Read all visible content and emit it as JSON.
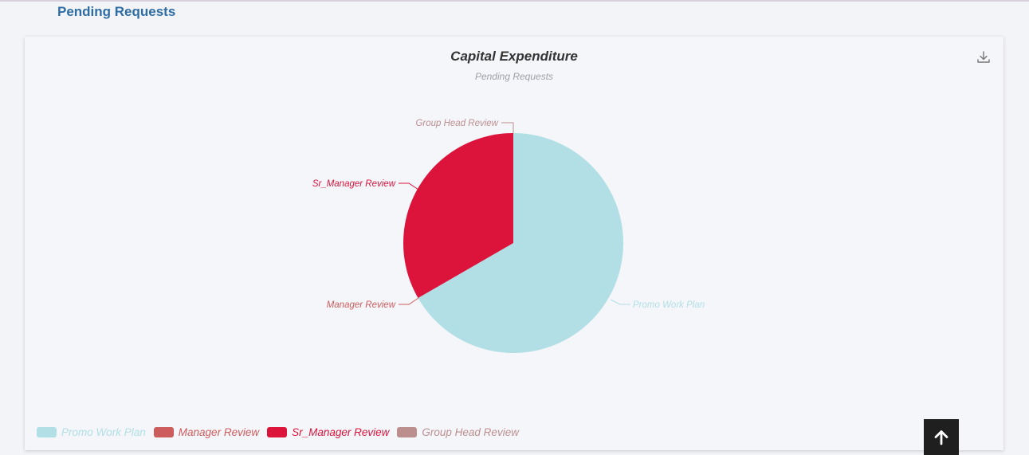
{
  "section_title": "Pending Requests",
  "colors": {
    "promo": "#b1dfe5",
    "manager": "#cd5c5c",
    "sr_manager": "#dc143c",
    "group_head": "#bc8f8f"
  },
  "icons": {
    "download": "download-icon",
    "scroll_top": "arrow-up-icon"
  },
  "chart_data": {
    "type": "pie",
    "title": "Capital Expenditure",
    "subtitle": "Pending Requests",
    "legend_position": "bottom-left",
    "categories": [
      "Promo Work Plan",
      "Manager Review",
      "Sr_Manager Review",
      "Group Head Review"
    ],
    "values": [
      2,
      0,
      1,
      0
    ],
    "colors": [
      "#b1dfe5",
      "#cd5c5c",
      "#dc143c",
      "#bc8f8f"
    ],
    "legend": [
      "Promo Work Plan",
      "Manager Review",
      "Sr_Manager Review",
      "Group Head Review"
    ]
  }
}
